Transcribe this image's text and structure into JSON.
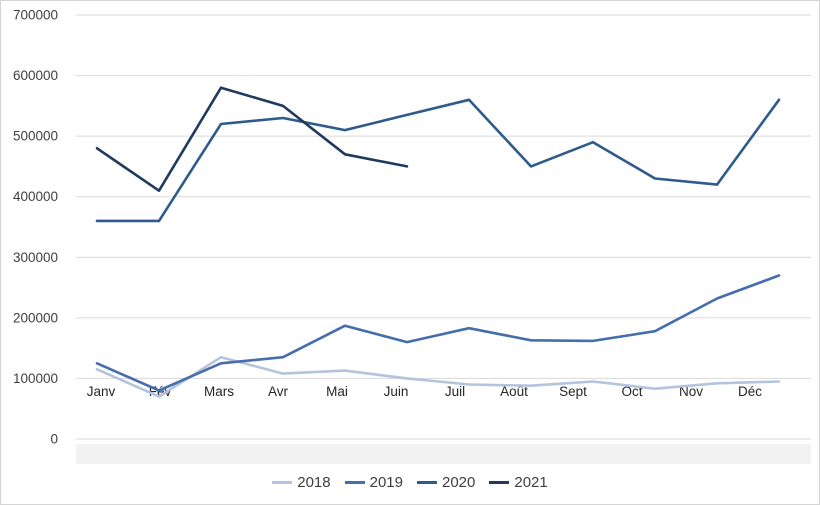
{
  "chart_data": {
    "type": "line",
    "title": "",
    "categories": [
      "Janv",
      "Fév",
      "Mars",
      "Avr",
      "Mai",
      "Juin",
      "Juil",
      "Août",
      "Sept",
      "Oct",
      "Nov",
      "Déc"
    ],
    "series": [
      {
        "name": "2018",
        "color": "#b4c3de",
        "values": [
          115000,
          70000,
          135000,
          108000,
          113000,
          100000,
          90000,
          88000,
          95000,
          83000,
          92000,
          95000
        ]
      },
      {
        "name": "2019",
        "color": "#466eac",
        "values": [
          125000,
          80000,
          125000,
          135000,
          187000,
          160000,
          183000,
          163000,
          162000,
          178000,
          232000,
          270000
        ]
      },
      {
        "name": "2020",
        "color": "#2e5a8c",
        "values": [
          360000,
          360000,
          520000,
          530000,
          510000,
          535000,
          560000,
          450000,
          490000,
          430000,
          420000,
          560000
        ]
      },
      {
        "name": "2021",
        "color": "#1f3a5c",
        "values": [
          480000,
          410000,
          580000,
          550000,
          470000,
          450000
        ]
      }
    ],
    "y_axis": {
      "min": 0,
      "max": 700000,
      "step": 100000,
      "tick_labels": [
        "0",
        "100000",
        "200000",
        "300000",
        "400000",
        "500000",
        "600000",
        "700000"
      ]
    },
    "x_axis": {
      "tick_labels": [
        "Janv",
        "Fév",
        "Mars",
        "Avr",
        "Mai",
        "Juin",
        "Juil",
        "Août",
        "Sept",
        "Oct",
        "Nov",
        "Déc"
      ]
    },
    "grid": "horizontal",
    "legend_position": "bottom",
    "colors": {
      "gridline": "#d9d9d9",
      "axis_band": "#f2f2f2",
      "y_tick_text": "#404040",
      "x_tick_text": "#262626",
      "legend_text": "#3f3f3f",
      "background": "#ffffff"
    }
  }
}
